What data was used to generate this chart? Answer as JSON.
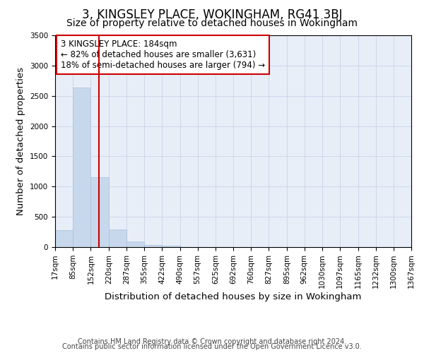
{
  "title": "3, KINGSLEY PLACE, WOKINGHAM, RG41 3BJ",
  "subtitle": "Size of property relative to detached houses in Wokingham",
  "xlabel": "Distribution of detached houses by size in Wokingham",
  "ylabel": "Number of detached properties",
  "footnote1": "Contains HM Land Registry data © Crown copyright and database right 2024.",
  "footnote2": "Contains public sector information licensed under the Open Government Licence v3.0.",
  "bin_edges": [
    17,
    85,
    152,
    220,
    287,
    355,
    422,
    490,
    557,
    625,
    692,
    760,
    827,
    895,
    962,
    1030,
    1097,
    1165,
    1232,
    1300,
    1367
  ],
  "bar_heights": [
    280,
    2640,
    1160,
    290,
    90,
    40,
    20,
    0,
    0,
    0,
    0,
    0,
    0,
    0,
    0,
    0,
    0,
    0,
    0,
    0
  ],
  "bar_color": "#c8d8ec",
  "bar_edge_color": "#a8c0dc",
  "grid_color": "#c8d4e8",
  "background_color": "#e8eef8",
  "red_line_x": 184,
  "annotation_text": "3 KINGSLEY PLACE: 184sqm\n← 82% of detached houses are smaller (3,631)\n18% of semi-detached houses are larger (794) →",
  "annotation_box_color": "white",
  "annotation_border_color": "#cc0000",
  "ylim": [
    0,
    3500
  ],
  "yticks": [
    0,
    500,
    1000,
    1500,
    2000,
    2500,
    3000,
    3500
  ],
  "title_fontsize": 12,
  "subtitle_fontsize": 10,
  "axis_label_fontsize": 9.5,
  "tick_fontsize": 7.5,
  "annotation_fontsize": 8.5,
  "footnote_fontsize": 7
}
